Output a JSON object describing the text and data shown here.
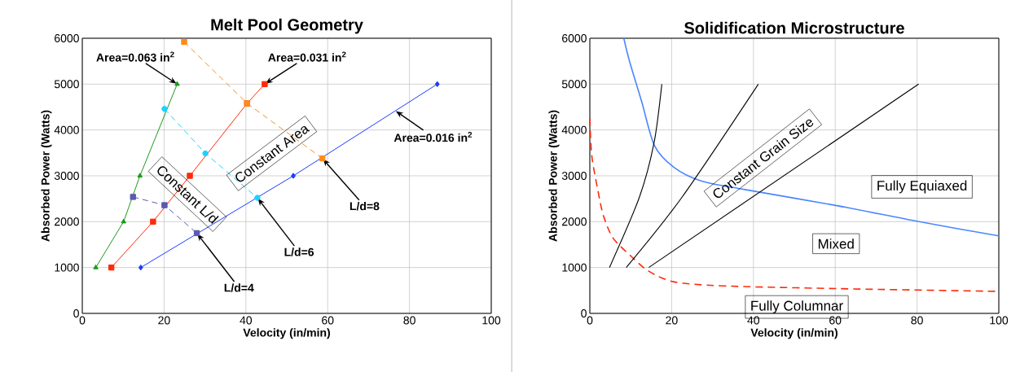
{
  "chart_data": [
    {
      "type": "line",
      "title": "Melt Pool Geometry",
      "xlabel": "Velocity (in/min)",
      "ylabel": "Absorbed Power (Watts)",
      "xlim": [
        0,
        100
      ],
      "ylim": [
        0,
        6000
      ],
      "xticks": [
        0,
        20,
        40,
        60,
        80,
        100
      ],
      "yticks": [
        0,
        1000,
        2000,
        3000,
        4000,
        5000,
        6000
      ],
      "grid": true,
      "series": [
        {
          "color": "#1a9a1a",
          "marker": "triangle",
          "line_style": "solid",
          "x": [
            3.3,
            10.1,
            14.1,
            23.2
          ],
          "values": [
            1000,
            2000,
            3000,
            5000
          ]
        },
        {
          "color": "#ff2a0a",
          "marker": "square",
          "line_style": "solid",
          "x": [
            7.1,
            17.3,
            26.3,
            40.3,
            44.6
          ],
          "values": [
            1000,
            2000,
            3000,
            4580,
            5000
          ]
        },
        {
          "color": "#1a3cff",
          "marker": "diamond",
          "line_style": "solid",
          "x": [
            14.3,
            51.6,
            86.8
          ],
          "values": [
            1000,
            3000,
            5000
          ]
        },
        {
          "color": "#ff8c1a",
          "marker": "square",
          "line_style": "dashed",
          "x": [
            24.9,
            40.3,
            58.7
          ],
          "values": [
            5920,
            4580,
            3380
          ]
        },
        {
          "color": "#1ad2ff",
          "marker": "circle",
          "line_style": "dashed",
          "x": [
            20.1,
            30.1,
            42.8
          ],
          "values": [
            4460,
            3490,
            2520
          ]
        },
        {
          "color": "#5a5ab0",
          "marker": "square",
          "line_style": "dashed",
          "x": [
            12.4,
            20.1,
            28.0
          ],
          "values": [
            2540,
            2360,
            1750
          ]
        }
      ],
      "annotations": [
        {
          "text": "Area=0.063 in$^{2}$",
          "x": 23.2,
          "y": 5000
        },
        {
          "text": "Area=0.031 in$^{2}$",
          "x": 44.6,
          "y": 5000
        },
        {
          "text": "Area=0.016 in$^{2}$",
          "x": 76.5,
          "y": 4420
        },
        {
          "text": "L/d=8",
          "x": 58.7,
          "y": 3380
        },
        {
          "text": "L/d=6",
          "x": 42.8,
          "y": 2520
        },
        {
          "text": "L/d=4",
          "x": 28.0,
          "y": 1750
        },
        "Constant L/d",
        "Constant Area"
      ]
    },
    {
      "type": "line",
      "title": "Solidification Microstructure",
      "xlabel": "Velocity (in/min)",
      "ylabel": "Absorbed Power (Watts)",
      "xlim": [
        0,
        100
      ],
      "ylim": [
        0,
        6000
      ],
      "xticks": [
        0,
        20,
        40,
        60,
        80,
        100
      ],
      "yticks": [
        0,
        1000,
        2000,
        3000,
        4000,
        5000,
        6000
      ],
      "grid": true,
      "series": [
        {
          "color": "#4a86ff",
          "marker": "none",
          "line_style": "solid",
          "x": [
            8.3,
            9.7,
            12.7,
            15.8,
            20.5,
            27.2,
            37.9,
            60.4,
            80.5,
            100
          ],
          "values": [
            6000,
            5500,
            4610,
            3660,
            3190,
            2890,
            2700,
            2350,
            2000,
            1690
          ]
        },
        {
          "color": "#ff2a0a",
          "marker": "none",
          "line_style": "dashed",
          "x": [
            0,
            0.5,
            2.3,
            3.4,
            5.7,
            10.4,
            14.4,
            20.5,
            32.5,
            60.4,
            100
          ],
          "values": [
            4250,
            3420,
            2530,
            2110,
            1640,
            1220,
            920,
            690,
            600,
            540,
            480
          ]
        },
        {
          "color": "#000000",
          "marker": "none",
          "line_style": "solid",
          "x": [
            4.8,
            12.1,
            15.7,
            17.6
          ],
          "values": [
            1000,
            2530,
            3720,
            5000
          ]
        },
        {
          "color": "#000000",
          "marker": "none",
          "line_style": "solid",
          "x": [
            8.9,
            22.5,
            41.2
          ],
          "values": [
            1000,
            2530,
            5000
          ]
        },
        {
          "color": "#000000",
          "marker": "none",
          "line_style": "solid",
          "x": [
            14.4,
            80.4
          ],
          "values": [
            1000,
            5000
          ]
        }
      ],
      "annotations": [
        "Constant Grain Size",
        "Fully Equiaxed",
        "Mixed",
        "Fully Columnar"
      ]
    }
  ]
}
